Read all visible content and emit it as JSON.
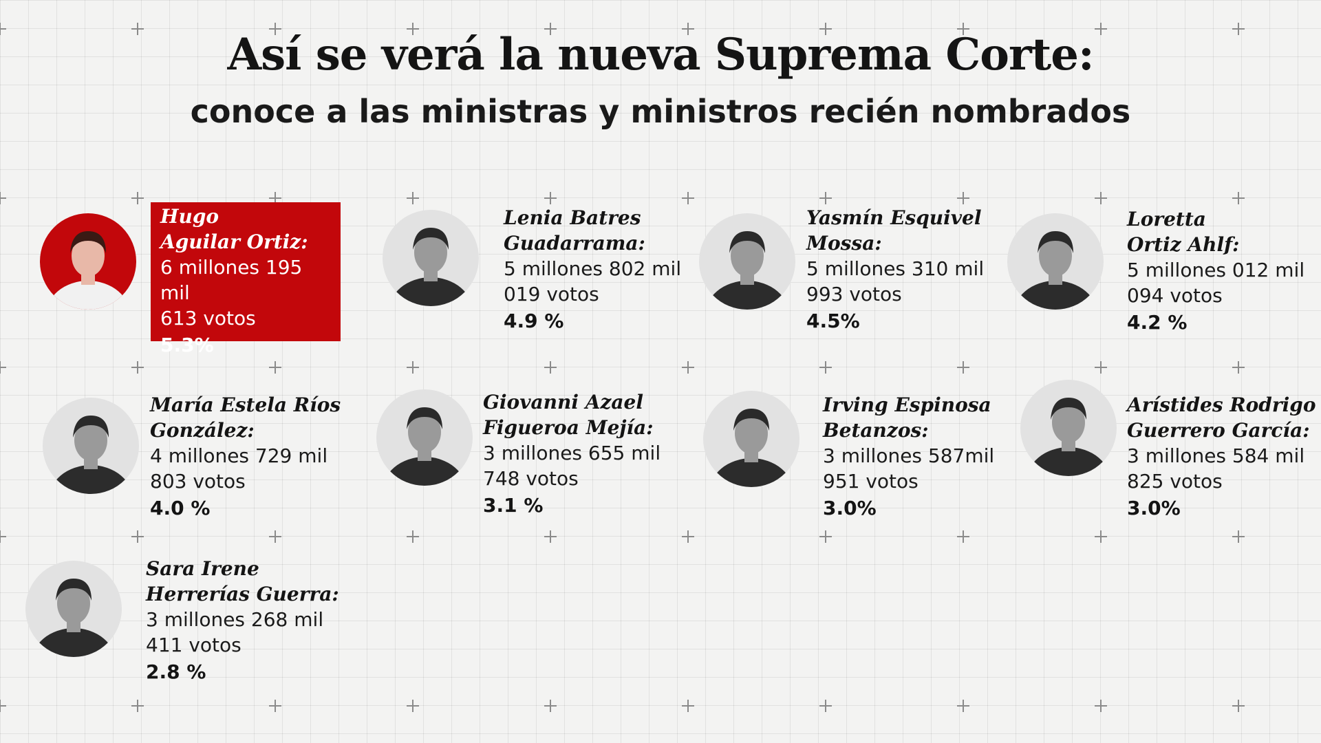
{
  "header": {
    "title": "Así se verá la nueva Suprema Corte:",
    "subtitle": "conoce a las ministras y ministros recién nombrados"
  },
  "colors": {
    "accent": "#c2070b",
    "background": "#f3f3f2",
    "text": "#141414"
  },
  "ministers": [
    {
      "name1": "Hugo",
      "name2": "Aguilar Ortiz:",
      "votes1": "6 millones 195 mil",
      "votes2": "613 votos",
      "pct": "5.3%",
      "highlight": true
    },
    {
      "name1": "Lenia Batres",
      "name2": "Guadarrama:",
      "votes1": "5 millones 802 mil",
      "votes2": "019 votos",
      "pct": "4.9 %"
    },
    {
      "name1": "Yasmín Esquivel",
      "name2": "Mossa:",
      "votes1": "5 millones 310 mil",
      "votes2": "993 votos",
      "pct": "4.5%"
    },
    {
      "name1": "Loretta",
      "name2": "Ortiz Ahlf:",
      "votes1": "5 millones 012 mil",
      "votes2": "094 votos",
      "pct": "4.2 %"
    },
    {
      "name1": "María Estela Ríos",
      "name2": "González:",
      "votes1": "4 millones 729 mil",
      "votes2": "803 votos",
      "pct": "4.0 %"
    },
    {
      "name1": "Giovanni Azael",
      "name2": "Figueroa Mejía:",
      "votes1": "3 millones 655 mil",
      "votes2": "748 votos",
      "pct": "3.1 %"
    },
    {
      "name1": "Irving Espinosa",
      "name2": "Betanzos:",
      "votes1": "3 millones 587mil",
      "votes2": "951 votos",
      "pct": "3.0%"
    },
    {
      "name1": "Arístides Rodrigo",
      "name2": "Guerrero García:",
      "votes1": "3 millones 584 mil",
      "votes2": "825 votos",
      "pct": "3.0%"
    },
    {
      "name1": "Sara Irene",
      "name2": "Herrerías Guerra:",
      "votes1": "3 millones 268 mil",
      "votes2": "411 votos",
      "pct": "2.8 %"
    }
  ]
}
